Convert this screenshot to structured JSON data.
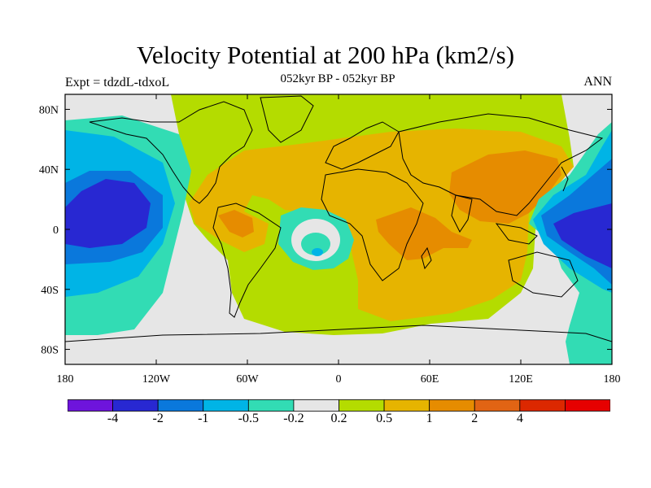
{
  "header": {
    "title": "Velocity Potential at 200 hPa (km2/s)",
    "subtitle": "052kyr BP - 052kyr BP",
    "left_label": "Expt = tdzdL-tdxoL",
    "right_label": "ANN"
  },
  "axes": {
    "y_ticks": [
      {
        "label": "80N",
        "lat": 80
      },
      {
        "label": "40N",
        "lat": 40
      },
      {
        "label": "0",
        "lat": 0
      },
      {
        "label": "40S",
        "lat": -40
      },
      {
        "label": "80S",
        "lat": -80
      }
    ],
    "x_ticks": [
      {
        "label": "180",
        "lon": -180
      },
      {
        "label": "120W",
        "lon": -120
      },
      {
        "label": "60W",
        "lon": -60
      },
      {
        "label": "0",
        "lon": 0
      },
      {
        "label": "60E",
        "lon": 60
      },
      {
        "label": "120E",
        "lon": 120
      },
      {
        "label": "180",
        "lon": 180
      }
    ],
    "lon_range": [
      -180,
      180
    ],
    "lat_range": [
      -90,
      90
    ]
  },
  "colorbar": {
    "colors": [
      "#6e14dc",
      "#2828d2",
      "#0a78dc",
      "#00b4e6",
      "#32dcb4",
      "#e6e6e6",
      "#b4dc00",
      "#e6b400",
      "#e68c00",
      "#e16414",
      "#dc2800",
      "#e60000"
    ],
    "labels": [
      "-4",
      "-2",
      "-1",
      "-0.5",
      "-0.2",
      "0.2",
      "0.5",
      "1",
      "2",
      "4"
    ]
  }
}
